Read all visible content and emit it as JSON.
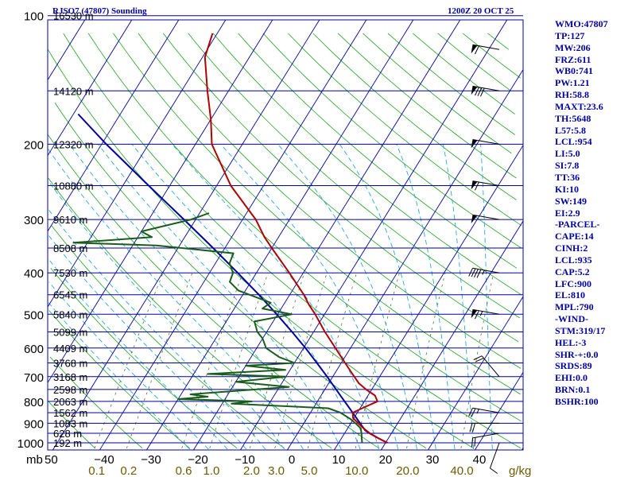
{
  "header": {
    "station": "RJSO7 (47807) Sounding",
    "time": "1200Z 20 OCT 25"
  },
  "colors": {
    "isobar": "#0000a0",
    "isotherm": "#0000a0",
    "dry_adiabat": "#1fa31f",
    "moist_adiabat": "#2ca7d8",
    "mixing_ratio": "#4d7a2e",
    "temperature": "#b00000",
    "dewpoint": "#1a5c1a",
    "parcel": "#0000a0",
    "wind_barb": "#000000",
    "label_pressure": "#000000",
    "label_temperature": "#000000",
    "label_mixing": "#6b5a00",
    "sidebar": "#0000a0"
  },
  "chart_data": {
    "type": "skew-t log-p",
    "title": "RJSO7 (47807) Sounding",
    "valid_time": "1200Z 20 OCT 25",
    "pressure_range_mb": [
      1000,
      100
    ],
    "temperature_range_c": [
      -50,
      50
    ],
    "pressure_unit_label": "mb",
    "mixing_ratio_unit_label": "g/kg",
    "isobars": [
      {
        "p": 100,
        "label": "100",
        "height": "16530 m"
      },
      {
        "p": 150,
        "label": "",
        "height": "14120 m"
      },
      {
        "p": 200,
        "label": "200",
        "height": "12320 m"
      },
      {
        "p": 250,
        "label": "",
        "height": "10880 m"
      },
      {
        "p": 300,
        "label": "300",
        "height": "9610 m"
      },
      {
        "p": 350,
        "label": "",
        "height": "8508 m"
      },
      {
        "p": 400,
        "label": "400",
        "height": "7530 m"
      },
      {
        "p": 450,
        "label": "",
        "height": "6545 m"
      },
      {
        "p": 500,
        "label": "500",
        "height": "5840 m"
      },
      {
        "p": 550,
        "label": "",
        "height": "5099 m"
      },
      {
        "p": 600,
        "label": "600",
        "height": "4409 m"
      },
      {
        "p": 650,
        "label": "",
        "height": "3768 m"
      },
      {
        "p": 700,
        "label": "700",
        "height": "3168 m"
      },
      {
        "p": 750,
        "label": "",
        "height": "2598 m"
      },
      {
        "p": 800,
        "label": "800",
        "height": "2063 m"
      },
      {
        "p": 850,
        "label": "",
        "height": "1562 m"
      },
      {
        "p": 900,
        "label": "900",
        "height": "1083 m"
      },
      {
        "p": 950,
        "label": "",
        "height": "628 m"
      },
      {
        "p": 1000,
        "label": "1000",
        "height": "192 m"
      }
    ],
    "temperature_ticks": [
      {
        "t": -40,
        "label": "−40"
      },
      {
        "t": -30,
        "label": "−30"
      },
      {
        "t": -20,
        "label": "−20"
      },
      {
        "t": -10,
        "label": "−10"
      },
      {
        "t": 0,
        "label": "0"
      },
      {
        "t": 10,
        "label": "10"
      },
      {
        "t": 20,
        "label": "20"
      },
      {
        "t": 30,
        "label": "30"
      },
      {
        "t": 40,
        "label": "40"
      }
    ],
    "mixing_ratio_lines": [
      0.1,
      0.2,
      0.6,
      1.0,
      2.0,
      3.0,
      5.0,
      10.0,
      20.0,
      40.0
    ],
    "mixing_ratio_labels": [
      "0.1",
      "0.2",
      "0.6",
      "1.0",
      "2.0",
      "3.0",
      "5.0",
      "10.0",
      "20.0",
      "40.0"
    ],
    "temperature_profile": [
      [
        1000,
        20.4
      ],
      [
        975,
        17.8
      ],
      [
        950,
        15.4
      ],
      [
        925,
        13.4
      ],
      [
        900,
        11.6
      ],
      [
        875,
        9.8
      ],
      [
        850,
        9.0
      ],
      [
        825,
        10.8
      ],
      [
        800,
        12.8
      ],
      [
        775,
        11.5
      ],
      [
        750,
        8.8
      ],
      [
        725,
        6.4
      ],
      [
        700,
        4.6
      ],
      [
        650,
        0.8
      ],
      [
        600,
        -3.2
      ],
      [
        550,
        -7.6
      ],
      [
        500,
        -12.0
      ],
      [
        475,
        -14.6
      ],
      [
        450,
        -17.0
      ],
      [
        400,
        -23.0
      ],
      [
        350,
        -30.0
      ],
      [
        330,
        -33.0
      ],
      [
        300,
        -37.2
      ],
      [
        250,
        -47.0
      ],
      [
        200,
        -56.5
      ],
      [
        175,
        -60.0
      ],
      [
        150,
        -64.5
      ],
      [
        125,
        -69.5
      ],
      [
        110,
        -71.0
      ],
      [
        100,
        -70.8
      ]
    ],
    "dewpoint_profile": [
      [
        1000,
        15.0
      ],
      [
        975,
        14.3
      ],
      [
        950,
        13.6
      ],
      [
        925,
        12.8
      ],
      [
        900,
        11.0
      ],
      [
        880,
        9.4
      ],
      [
        850,
        6.4
      ],
      [
        830,
        3.2
      ],
      [
        810,
        -18.0
      ],
      [
        800,
        -14.0
      ],
      [
        790,
        -30.0
      ],
      [
        780,
        -24.0
      ],
      [
        770,
        -28.0
      ],
      [
        740,
        -8.0
      ],
      [
        720,
        -20.0
      ],
      [
        700,
        -10.0
      ],
      [
        690,
        -27.0
      ],
      [
        675,
        -11.0
      ],
      [
        660,
        -20.0
      ],
      [
        650,
        -10.0
      ],
      [
        630,
        -14.0
      ],
      [
        600,
        -18.0
      ],
      [
        570,
        -20.0
      ],
      [
        550,
        -22.0
      ],
      [
        520,
        -24.0
      ],
      [
        500,
        -17.0
      ],
      [
        485,
        -24.0
      ],
      [
        470,
        -23.0
      ],
      [
        440,
        -31.5
      ],
      [
        420,
        -34.5
      ],
      [
        400,
        -35.0
      ],
      [
        380,
        -37.0
      ],
      [
        360,
        -37.5
      ],
      [
        345,
        -55.0
      ],
      [
        340,
        -73.0
      ],
      [
        330,
        -57.0
      ],
      [
        320,
        -60.0
      ],
      [
        300,
        -51.0
      ],
      [
        290,
        -48.0
      ]
    ],
    "parcel_profile": [
      [
        1000,
        20.4
      ],
      [
        975,
        17.8
      ],
      [
        950,
        15.3
      ],
      [
        935,
        14.0
      ],
      [
        900,
        12.0
      ],
      [
        850,
        9.0
      ],
      [
        800,
        5.8
      ],
      [
        750,
        2.4
      ],
      [
        700,
        -1.2
      ],
      [
        650,
        -5.2
      ],
      [
        600,
        -9.6
      ],
      [
        550,
        -14.6
      ],
      [
        500,
        -20.2
      ],
      [
        450,
        -26.6
      ],
      [
        400,
        -34.0
      ],
      [
        350,
        -42.5
      ],
      [
        300,
        -52.5
      ],
      [
        250,
        -64.5
      ],
      [
        200,
        -79.0
      ],
      [
        170,
        -89.0
      ]
    ],
    "wind_barbs": [
      {
        "p": 1000,
        "dir": 200,
        "kt": 10
      },
      {
        "p": 950,
        "dir": 260,
        "kt": 20
      },
      {
        "p": 900,
        "dir": 270,
        "kt": 20
      },
      {
        "p": 850,
        "dir": 280,
        "kt": 25
      },
      {
        "p": 700,
        "dir": 320,
        "kt": 20
      },
      {
        "p": 500,
        "dir": 280,
        "kt": 65
      },
      {
        "p": 400,
        "dir": 280,
        "kt": 45
      },
      {
        "p": 300,
        "dir": 280,
        "kt": 50
      },
      {
        "p": 250,
        "dir": 280,
        "kt": 60
      },
      {
        "p": 200,
        "dir": 280,
        "kt": 50
      },
      {
        "p": 150,
        "dir": 280,
        "kt": 80
      },
      {
        "p": 120,
        "dir": 280,
        "kt": 60
      }
    ]
  },
  "indices": [
    "WMO:47807",
    "TP:127",
    "MW:206",
    "FRZ:611",
    "WB0:741",
    "PW:1.21",
    "RH:58.8",
    "MAXT:23.6",
    "TH:5648",
    "L57:5.8",
    "LCL:954",
    "LI:5.0",
    "SI:7.8",
    "TT:36",
    "KI:10",
    "SW:149",
    "EI:2.9",
    "-PARCEL-",
    "CAPE:14",
    "CINH:2",
    "LCL:935",
    "CAP:5.2",
    "LFC:900",
    "EL:810",
    "MPL:790",
    "-WIND-",
    "STM:319/17",
    "HEL:-3",
    "SHR-+:0.0",
    "SRDS:89",
    "EHI:0.0",
    "BRN:0.1",
    "BSHR:100"
  ]
}
